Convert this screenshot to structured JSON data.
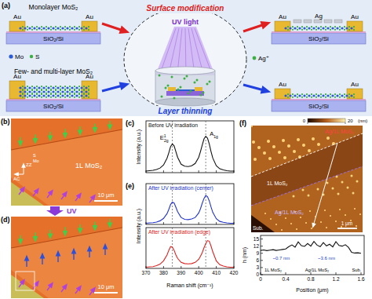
{
  "chart_data": [
    {
      "type": "line",
      "panel": "(c)",
      "title": "Before UV irradiation",
      "y_label": "Intensity (a.u.)",
      "x": [
        370,
        372,
        374,
        376,
        378,
        380,
        382,
        383,
        384,
        385,
        386,
        387,
        388,
        390,
        392,
        394,
        396,
        398,
        400,
        401,
        402,
        403,
        404,
        405,
        406,
        407,
        408,
        410,
        412,
        414,
        416,
        418,
        420
      ],
      "series": [
        {
          "color": "#111111",
          "values": [
            0.04,
            0.05,
            0.06,
            0.08,
            0.12,
            0.2,
            0.38,
            0.52,
            0.68,
            0.75,
            0.7,
            0.55,
            0.4,
            0.22,
            0.17,
            0.16,
            0.18,
            0.24,
            0.4,
            0.55,
            0.72,
            0.88,
            0.95,
            0.9,
            0.75,
            0.55,
            0.38,
            0.18,
            0.1,
            0.07,
            0.05,
            0.04,
            0.04
          ]
        }
      ],
      "xlim": [
        370,
        420
      ],
      "xticks": [
        370,
        380,
        390,
        400,
        410,
        420
      ],
      "ylim": [
        0,
        1.35
      ],
      "tick_labels": false,
      "reference_lines": [
        385,
        404
      ],
      "peak_labels": [
        {
          "base": "E",
          "sup": "1",
          "sub": "2g",
          "x": 385
        },
        {
          "base": "A",
          "sub": "1g",
          "x": 404
        }
      ]
    },
    {
      "type": "line",
      "panel": "(e)",
      "title": "After UV irradiation (center)",
      "y_label": "Intensity (a.u.)",
      "x": [
        370,
        372,
        374,
        376,
        378,
        380,
        382,
        383,
        384,
        385,
        386,
        387,
        388,
        390,
        392,
        394,
        396,
        398,
        400,
        401,
        402,
        403,
        404,
        405,
        406,
        407,
        408,
        410,
        412,
        414,
        416,
        418,
        420
      ],
      "series": [
        {
          "color": "#2233cc",
          "values": [
            0.04,
            0.05,
            0.06,
            0.08,
            0.12,
            0.2,
            0.36,
            0.5,
            0.66,
            0.74,
            0.71,
            0.57,
            0.42,
            0.23,
            0.17,
            0.16,
            0.18,
            0.23,
            0.38,
            0.52,
            0.7,
            0.86,
            0.96,
            0.92,
            0.78,
            0.58,
            0.4,
            0.19,
            0.1,
            0.07,
            0.05,
            0.04,
            0.04
          ]
        }
      ],
      "xlim": [
        370,
        420
      ],
      "xticks": [
        370,
        380,
        390,
        400,
        410,
        420
      ],
      "ylim": [
        0,
        1.35
      ],
      "tick_labels": false,
      "reference_lines": [
        385,
        404
      ]
    },
    {
      "type": "line",
      "title": "After UV irradiation (edge)",
      "x_label": "Raman shift (cm⁻¹)",
      "x": [
        370,
        372,
        374,
        376,
        378,
        380,
        382,
        383,
        384,
        385,
        386,
        387,
        388,
        390,
        392,
        394,
        396,
        398,
        400,
        401,
        402,
        403,
        404,
        405,
        406,
        407,
        408,
        410,
        412,
        414,
        416,
        418,
        420
      ],
      "series": [
        {
          "color": "#dd2222",
          "values": [
            0.04,
            0.05,
            0.06,
            0.09,
            0.14,
            0.25,
            0.45,
            0.6,
            0.72,
            0.7,
            0.6,
            0.45,
            0.33,
            0.2,
            0.16,
            0.15,
            0.16,
            0.2,
            0.3,
            0.4,
            0.52,
            0.68,
            0.82,
            0.92,
            0.9,
            0.74,
            0.55,
            0.25,
            0.12,
            0.08,
            0.05,
            0.04,
            0.04
          ]
        }
      ],
      "xlim": [
        370,
        420
      ],
      "xticks": [
        370,
        380,
        390,
        400,
        410,
        420
      ],
      "ylim": [
        0,
        1.35
      ],
      "tick_labels": "x",
      "reference_lines": [
        385,
        404
      ]
    },
    {
      "type": "line",
      "x_label": "Position (μm)",
      "y_label": "h (nm)",
      "x": [
        0,
        0.05,
        0.1,
        0.15,
        0.2,
        0.25,
        0.3,
        0.35,
        0.4,
        0.45,
        0.5,
        0.55,
        0.6,
        0.65,
        0.7,
        0.75,
        0.8,
        0.85,
        0.9,
        0.95,
        1.0,
        1.05,
        1.1,
        1.15,
        1.2,
        1.25,
        1.3,
        1.35,
        1.4,
        1.45,
        1.5,
        1.55,
        1.6
      ],
      "series": [
        {
          "color": "#111111",
          "values": [
            10.2,
            10.4,
            10.1,
            10.3,
            10.5,
            10.2,
            10.4,
            10.6,
            10.8,
            11.8,
            12.5,
            11.6,
            13.8,
            12.2,
            11.9,
            13.1,
            12.0,
            14.0,
            12.4,
            11.8,
            13.5,
            12.1,
            12.8,
            11.7,
            13.9,
            12.3,
            12.0,
            12.6,
            11.5,
            9.4,
            9.1,
            9.2,
            9.0
          ]
        }
      ],
      "xlim": [
        0,
        1.65
      ],
      "xticks": [
        0,
        0.4,
        0.8,
        1.2,
        1.6
      ],
      "ylim": [
        0,
        16.5
      ],
      "yticks": [
        0,
        3,
        6,
        9,
        12,
        15
      ],
      "region_labels": [
        {
          "text": "1L MoS₂",
          "x": 0.2
        },
        {
          "text": "Ag/1L MoS₂",
          "x": 0.9
        },
        {
          "text": "Sub.",
          "x": 1.53
        }
      ],
      "annotations": [
        {
          "text": "~0.7 nm",
          "x": 0.33,
          "y": 6.3
        },
        {
          "text": "~3.6 nm",
          "x": 1.05,
          "y": 6.3
        }
      ]
    }
  ],
  "panel_a": {
    "panel": "(a)",
    "top_left": {
      "title": "Monolayer MoS₂",
      "electrode": "Au",
      "substrate": "SiO₂/Si"
    },
    "bottom_left": {
      "title": "Few- and multi-layer MoS₂",
      "electrode": "Au",
      "substrate": "SiO₂/Si"
    },
    "top_right": {
      "electrode": "Au",
      "substrate": "SiO₂/Si",
      "deposit": "Ag"
    },
    "bottom_right": {
      "electrode": "Au",
      "substrate": "SiO₂/Si"
    },
    "process_top": "Surface modification",
    "process_bottom": "Layer thinning",
    "light": "UV light",
    "atoms": [
      "Mo",
      "S"
    ],
    "ion": "Ag⁺"
  },
  "panel_b": {
    "panel": "(b)",
    "label": "1L MoS₂",
    "scale_bar": "10 μm",
    "axes": [
      "AC",
      "ZZ"
    ],
    "inset_atoms": [
      "S",
      "Mo"
    ]
  },
  "panel_d": {
    "panel": "(d)",
    "scale_bar": "10 μm",
    "arrow_label": "UV"
  },
  "panel_f": {
    "panel": "(f)",
    "labels": [
      "Ag/1L MoS₂",
      "1L MoS₂",
      "Ag/1L MoS₂",
      "Sub."
    ],
    "scale_bar": "1 μm",
    "colorbar": {
      "range": [
        0,
        20
      ],
      "ticks": [
        0,
        20
      ],
      "unit": "(nm)"
    }
  }
}
